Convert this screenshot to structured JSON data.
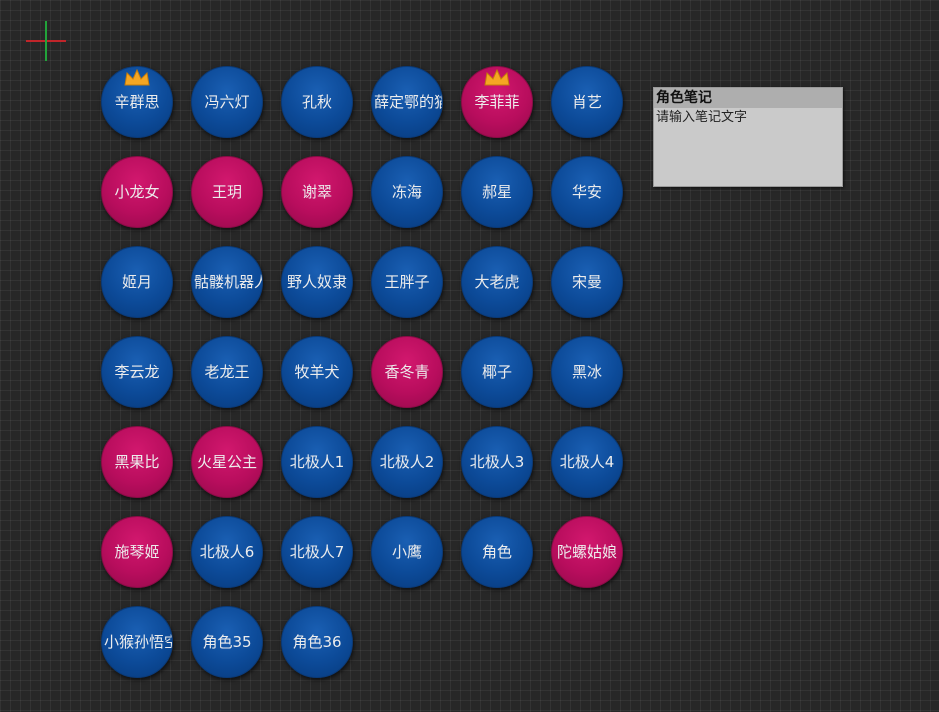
{
  "notes": {
    "title": "角色笔记",
    "placeholder": "请输入笔记文字"
  },
  "colors": {
    "blue": "#0c4a98",
    "pink": "#b80d5d",
    "crown": "#f5a623"
  },
  "characters": [
    {
      "name": "辛群思",
      "color": "blue",
      "crown": true
    },
    {
      "name": "冯六灯",
      "color": "blue",
      "crown": false
    },
    {
      "name": "孔秋",
      "color": "blue",
      "crown": false
    },
    {
      "name": "薛定鄂的猫",
      "color": "blue",
      "crown": false,
      "clipped": true
    },
    {
      "name": "李菲菲",
      "color": "pink",
      "crown": true
    },
    {
      "name": "肖艺",
      "color": "blue",
      "crown": false
    },
    {
      "name": "小龙女",
      "color": "pink",
      "crown": false
    },
    {
      "name": "王玥",
      "color": "pink",
      "crown": false
    },
    {
      "name": "谢翠",
      "color": "pink",
      "crown": false
    },
    {
      "name": "冻海",
      "color": "blue",
      "crown": false
    },
    {
      "name": "郝星",
      "color": "blue",
      "crown": false
    },
    {
      "name": "华安",
      "color": "blue",
      "crown": false
    },
    {
      "name": "姬月",
      "color": "blue",
      "crown": false
    },
    {
      "name": "骷髅机器人",
      "color": "blue",
      "crown": false,
      "clipped": true
    },
    {
      "name": "野人奴隶",
      "color": "blue",
      "crown": false
    },
    {
      "name": "王胖子",
      "color": "blue",
      "crown": false
    },
    {
      "name": "大老虎",
      "color": "blue",
      "crown": false
    },
    {
      "name": "宋曼",
      "color": "blue",
      "crown": false
    },
    {
      "name": "李云龙",
      "color": "blue",
      "crown": false
    },
    {
      "name": "老龙王",
      "color": "blue",
      "crown": false
    },
    {
      "name": "牧羊犬",
      "color": "blue",
      "crown": false
    },
    {
      "name": "香冬青",
      "color": "pink",
      "crown": false
    },
    {
      "name": "椰子",
      "color": "blue",
      "crown": false
    },
    {
      "name": "黑冰",
      "color": "blue",
      "crown": false
    },
    {
      "name": "黑果比",
      "color": "pink",
      "crown": false
    },
    {
      "name": "火星公主",
      "color": "pink",
      "crown": false
    },
    {
      "name": "北极人1",
      "color": "blue",
      "crown": false
    },
    {
      "name": "北极人2",
      "color": "blue",
      "crown": false
    },
    {
      "name": "北极人3",
      "color": "blue",
      "crown": false
    },
    {
      "name": "北极人4",
      "color": "blue",
      "crown": false
    },
    {
      "name": "施琴姬",
      "color": "pink",
      "crown": false
    },
    {
      "name": "北极人6",
      "color": "blue",
      "crown": false
    },
    {
      "name": "北极人7",
      "color": "blue",
      "crown": false
    },
    {
      "name": "小鹰",
      "color": "blue",
      "crown": false
    },
    {
      "name": "角色",
      "color": "blue",
      "crown": false
    },
    {
      "name": "陀螺姑娘",
      "color": "pink",
      "crown": false
    },
    {
      "name": "小猴孙悟空",
      "color": "blue",
      "crown": false,
      "clipped": true
    },
    {
      "name": "角色35",
      "color": "blue",
      "crown": false
    },
    {
      "name": "角色36",
      "color": "blue",
      "crown": false
    }
  ]
}
